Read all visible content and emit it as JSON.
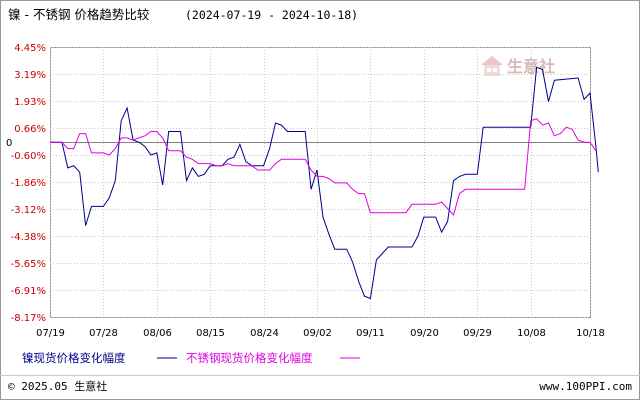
{
  "title": {
    "main": "镍 - 不锈钢 价格趋势比较",
    "range": "(2024-07-19 - 2024-10-18)"
  },
  "watermark": {
    "text": "生意社"
  },
  "footer": {
    "left": "© 2025.05 生意社",
    "right": "www.100PPI.com"
  },
  "colors": {
    "nickel": "#00008b",
    "stainless": "#e000e0",
    "ytick": "#cc0000",
    "grid": "#c8c8c8",
    "zero": "#808080"
  },
  "chart_data": {
    "type": "line",
    "ylim": [
      -8.17,
      4.45
    ],
    "xlim": [
      0,
      91
    ],
    "yticks": [
      "4.45%",
      "3.19%",
      "1.93%",
      "0.66%",
      "-0.60%",
      "-1.86%",
      "-3.12%",
      "-4.38%",
      "-5.65%",
      "-6.91%",
      "-8.17%"
    ],
    "ytick_values": [
      4.45,
      3.19,
      1.93,
      0.66,
      -0.6,
      -1.86,
      -3.12,
      -4.38,
      -5.65,
      -6.91,
      -8.17
    ],
    "zero_label": "0",
    "xticks": [
      "07/19",
      "07/28",
      "08/06",
      "08/15",
      "08/24",
      "09/02",
      "09/11",
      "09/20",
      "09/29",
      "10/08",
      "10/18"
    ],
    "xtick_values": [
      0,
      9,
      18,
      27,
      36,
      45,
      54,
      63,
      72,
      81,
      91
    ],
    "grid": true,
    "legend_position": "bottom",
    "series": [
      {
        "name": "镍现货价格变化幅度",
        "color": "#00008b",
        "points": [
          [
            0,
            0
          ],
          [
            2,
            0
          ],
          [
            3,
            -1.2
          ],
          [
            4,
            -1.1
          ],
          [
            5,
            -1.4
          ],
          [
            6,
            -3.9
          ],
          [
            7,
            -3.0
          ],
          [
            9,
            -3.0
          ],
          [
            10,
            -2.6
          ],
          [
            11,
            -1.8
          ],
          [
            12,
            1.0
          ],
          [
            13,
            1.6
          ],
          [
            14,
            0.1
          ],
          [
            15,
            0.0
          ],
          [
            16,
            -0.2
          ],
          [
            17,
            -0.6
          ],
          [
            18,
            -0.5
          ],
          [
            19,
            -2.0
          ],
          [
            20,
            0.5
          ],
          [
            22,
            0.5
          ],
          [
            23,
            -1.8
          ],
          [
            24,
            -1.2
          ],
          [
            25,
            -1.6
          ],
          [
            26,
            -1.5
          ],
          [
            27,
            -1.1
          ],
          [
            29,
            -1.1
          ],
          [
            30,
            -0.8
          ],
          [
            31,
            -0.7
          ],
          [
            32,
            -0.1
          ],
          [
            33,
            -0.9
          ],
          [
            34,
            -1.1
          ],
          [
            36,
            -1.1
          ],
          [
            37,
            -0.3
          ],
          [
            38,
            0.9
          ],
          [
            39,
            0.8
          ],
          [
            40,
            0.5
          ],
          [
            43,
            0.5
          ],
          [
            44,
            -2.2
          ],
          [
            45,
            -1.3
          ],
          [
            46,
            -3.5
          ],
          [
            47,
            -4.3
          ],
          [
            48,
            -5.0
          ],
          [
            50,
            -5.0
          ],
          [
            51,
            -5.6
          ],
          [
            52,
            -6.5
          ],
          [
            53,
            -7.2
          ],
          [
            54,
            -7.3
          ],
          [
            55,
            -5.5
          ],
          [
            56,
            -5.2
          ],
          [
            57,
            -4.9
          ],
          [
            61,
            -4.9
          ],
          [
            62,
            -4.4
          ],
          [
            63,
            -3.5
          ],
          [
            65,
            -3.5
          ],
          [
            66,
            -4.2
          ],
          [
            67,
            -3.7
          ],
          [
            68,
            -1.8
          ],
          [
            69,
            -1.6
          ],
          [
            70,
            -1.5
          ],
          [
            72,
            -1.5
          ],
          [
            73,
            0.7
          ],
          [
            81,
            0.7
          ],
          [
            82,
            3.5
          ],
          [
            83,
            3.4
          ],
          [
            84,
            1.9
          ],
          [
            85,
            2.9
          ],
          [
            89,
            3.0
          ],
          [
            90,
            2.0
          ],
          [
            91,
            2.3
          ],
          [
            92,
            -0.2
          ],
          [
            92.4,
            -1.4
          ]
        ]
      },
      {
        "name": "不锈钢现货价格变化幅度",
        "color": "#e000e0",
        "points": [
          [
            0,
            0
          ],
          [
            2,
            0
          ],
          [
            3,
            -0.3
          ],
          [
            4,
            -0.3
          ],
          [
            5,
            0.4
          ],
          [
            6,
            0.4
          ],
          [
            7,
            -0.5
          ],
          [
            9,
            -0.5
          ],
          [
            10,
            -0.6
          ],
          [
            11,
            -0.3
          ],
          [
            12,
            0.2
          ],
          [
            13,
            0.2
          ],
          [
            14,
            0.1
          ],
          [
            15,
            0.2
          ],
          [
            16,
            0.3
          ],
          [
            17,
            0.5
          ],
          [
            18,
            0.5
          ],
          [
            19,
            0.2
          ],
          [
            20,
            -0.4
          ],
          [
            22,
            -0.4
          ],
          [
            23,
            -0.7
          ],
          [
            24,
            -0.8
          ],
          [
            25,
            -1.0
          ],
          [
            27,
            -1.0
          ],
          [
            28,
            -1.1
          ],
          [
            29,
            -1.1
          ],
          [
            30,
            -1.0
          ],
          [
            31,
            -1.1
          ],
          [
            34,
            -1.1
          ],
          [
            35,
            -1.3
          ],
          [
            37,
            -1.3
          ],
          [
            38,
            -1.0
          ],
          [
            39,
            -0.8
          ],
          [
            43,
            -0.8
          ],
          [
            44,
            -1.3
          ],
          [
            45,
            -1.6
          ],
          [
            46,
            -1.6
          ],
          [
            47,
            -1.7
          ],
          [
            48,
            -1.9
          ],
          [
            50,
            -1.9
          ],
          [
            51,
            -2.2
          ],
          [
            52,
            -2.4
          ],
          [
            53,
            -2.4
          ],
          [
            54,
            -3.3
          ],
          [
            60,
            -3.3
          ],
          [
            61,
            -2.9
          ],
          [
            65,
            -2.9
          ],
          [
            66,
            -2.8
          ],
          [
            67,
            -3.1
          ],
          [
            68,
            -3.4
          ],
          [
            69,
            -2.4
          ],
          [
            70,
            -2.2
          ],
          [
            80,
            -2.2
          ],
          [
            81,
            1.0
          ],
          [
            82,
            1.1
          ],
          [
            83,
            0.8
          ],
          [
            84,
            0.9
          ],
          [
            85,
            0.3
          ],
          [
            86,
            0.4
          ],
          [
            87,
            0.7
          ],
          [
            88,
            0.6
          ],
          [
            89,
            0.1
          ],
          [
            90,
            0.0
          ],
          [
            91,
            0.0
          ],
          [
            92,
            -0.4
          ]
        ]
      }
    ]
  }
}
